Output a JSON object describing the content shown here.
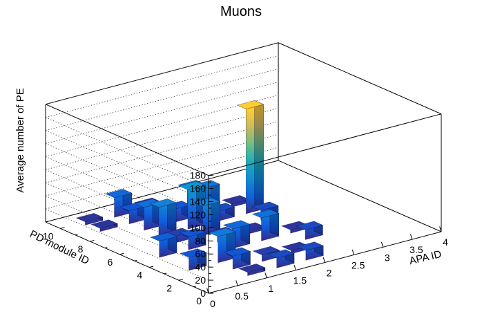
{
  "chart_data": {
    "type": "bar3d",
    "title": "Muons",
    "xlabel": "APA ID",
    "ylabel": "PD module ID",
    "zlabel": "Average number of PE",
    "xlim": [
      0,
      4
    ],
    "ylim": [
      0,
      11
    ],
    "zlim": [
      0,
      180
    ],
    "x_ticks": [
      "0",
      "0.5",
      "1",
      "1.5",
      "2",
      "2.5",
      "3",
      "3.5",
      "4"
    ],
    "y_ticks": [
      "0",
      "2",
      "4",
      "6",
      "8",
      "10"
    ],
    "z_ticks": [
      "0",
      "20",
      "40",
      "60",
      "80",
      "100",
      "120",
      "140",
      "160",
      "180"
    ],
    "colormap": [
      "#352a87",
      "#0f5cdd",
      "#1481d6",
      "#06a4ca",
      "#2eb7a4",
      "#87bf77",
      "#d1bb59",
      "#fec832",
      "#f9fb0e"
    ],
    "grid": true,
    "bars": [
      {
        "x": 1,
        "y": 3,
        "value": 20
      },
      {
        "x": 1,
        "y": 5,
        "value": 25
      },
      {
        "x": 1,
        "y": 9,
        "value": 5
      },
      {
        "x": 1,
        "y": 10,
        "value": 5
      },
      {
        "x": 2,
        "y": 1,
        "value": 5
      },
      {
        "x": 2,
        "y": 2,
        "value": 20
      },
      {
        "x": 2,
        "y": 3,
        "value": 40
      },
      {
        "x": 2,
        "y": 5,
        "value": 20
      },
      {
        "x": 2,
        "y": 6,
        "value": 10
      },
      {
        "x": 2,
        "y": 7,
        "value": 45
      },
      {
        "x": 2,
        "y": 8,
        "value": 35
      },
      {
        "x": 2,
        "y": 9,
        "value": 20
      },
      {
        "x": 2,
        "y": 10,
        "value": 30
      },
      {
        "x": 3,
        "y": 1,
        "value": 15
      },
      {
        "x": 3,
        "y": 2,
        "value": 10
      },
      {
        "x": 3,
        "y": 4,
        "value": 30
      },
      {
        "x": 3,
        "y": 5,
        "value": 10
      },
      {
        "x": 3,
        "y": 6,
        "value": 45
      },
      {
        "x": 3,
        "y": 7,
        "value": 60
      },
      {
        "x": 3,
        "y": 8,
        "value": 20
      },
      {
        "x": 3,
        "y": 10,
        "value": 5
      },
      {
        "x": 4,
        "y": 1,
        "value": 15
      },
      {
        "x": 4,
        "y": 2,
        "value": 5
      },
      {
        "x": 4,
        "y": 4,
        "value": 35
      },
      {
        "x": 4,
        "y": 5,
        "value": 5
      },
      {
        "x": 4,
        "y": 7,
        "value": 15
      },
      {
        "x": 4,
        "y": 8,
        "value": 40
      },
      {
        "x": 4,
        "y": 9,
        "value": 30
      },
      {
        "x": 5,
        "y": 3,
        "value": 15
      },
      {
        "x": 5,
        "y": 4,
        "value": 5
      },
      {
        "x": 5,
        "y": 6,
        "value": 15
      },
      {
        "x": 5,
        "y": 7,
        "value": 160
      },
      {
        "x": 5,
        "y": 8,
        "value": 5
      }
    ]
  }
}
